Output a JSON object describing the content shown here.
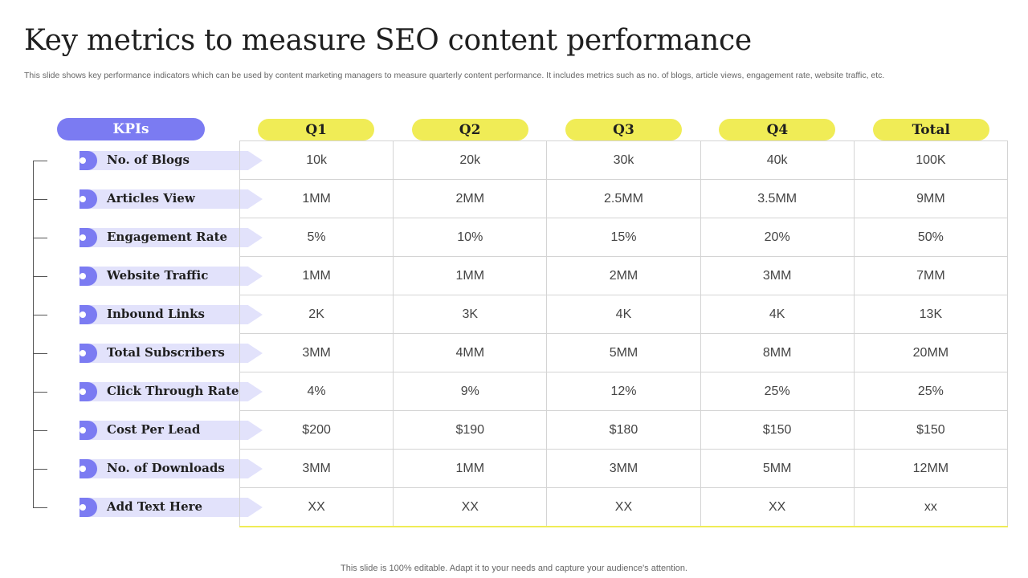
{
  "title": "Key metrics to measure SEO content performance",
  "subtitle": "This slide shows key performance indicators which can be used by content marketing managers to measure quarterly content performance. It includes metrics such as no. of blogs, article views, engagement rate, website traffic, etc.",
  "kpi_header": "KPIs",
  "columns": [
    "Q1",
    "Q2",
    "Q3",
    "Q4",
    "Total"
  ],
  "rows": [
    {
      "kpi": "No. of Blogs",
      "values": [
        "10k",
        "20k",
        "30k",
        "40k",
        "100K"
      ]
    },
    {
      "kpi": "Articles View",
      "values": [
        "1MM",
        "2MM",
        "2.5MM",
        "3.5MM",
        "9MM"
      ]
    },
    {
      "kpi": "Engagement Rate",
      "values": [
        "5%",
        "10%",
        "15%",
        "20%",
        "50%"
      ]
    },
    {
      "kpi": "Website Traffic",
      "values": [
        "1MM",
        "1MM",
        "2MM",
        "3MM",
        "7MM"
      ]
    },
    {
      "kpi": "Inbound Links",
      "values": [
        "2K",
        "3K",
        "4K",
        "4K",
        "13K"
      ]
    },
    {
      "kpi": "Total Subscribers",
      "values": [
        "3MM",
        "4MM",
        "5MM",
        "8MM",
        "20MM"
      ]
    },
    {
      "kpi": "Click Through Rate",
      "values": [
        "4%",
        "9%",
        "12%",
        "25%",
        "25%"
      ]
    },
    {
      "kpi": "Cost Per Lead",
      "values": [
        "$200",
        "$190",
        "$180",
        "$150",
        "$150"
      ]
    },
    {
      "kpi": "No. of Downloads",
      "values": [
        "3MM",
        "1MM",
        "3MM",
        "5MM",
        "12MM"
      ]
    },
    {
      "kpi": "Add Text Here",
      "values": [
        "XX",
        "XX",
        "XX",
        "XX",
        "xx"
      ]
    }
  ],
  "footer": "This slide is 100% editable. Adapt it to your needs and capture your audience's attention.",
  "colors": {
    "accent_purple": "#7b7bf2",
    "accent_yellow": "#f0ec56",
    "kpi_bar": "#e2e2fb"
  }
}
